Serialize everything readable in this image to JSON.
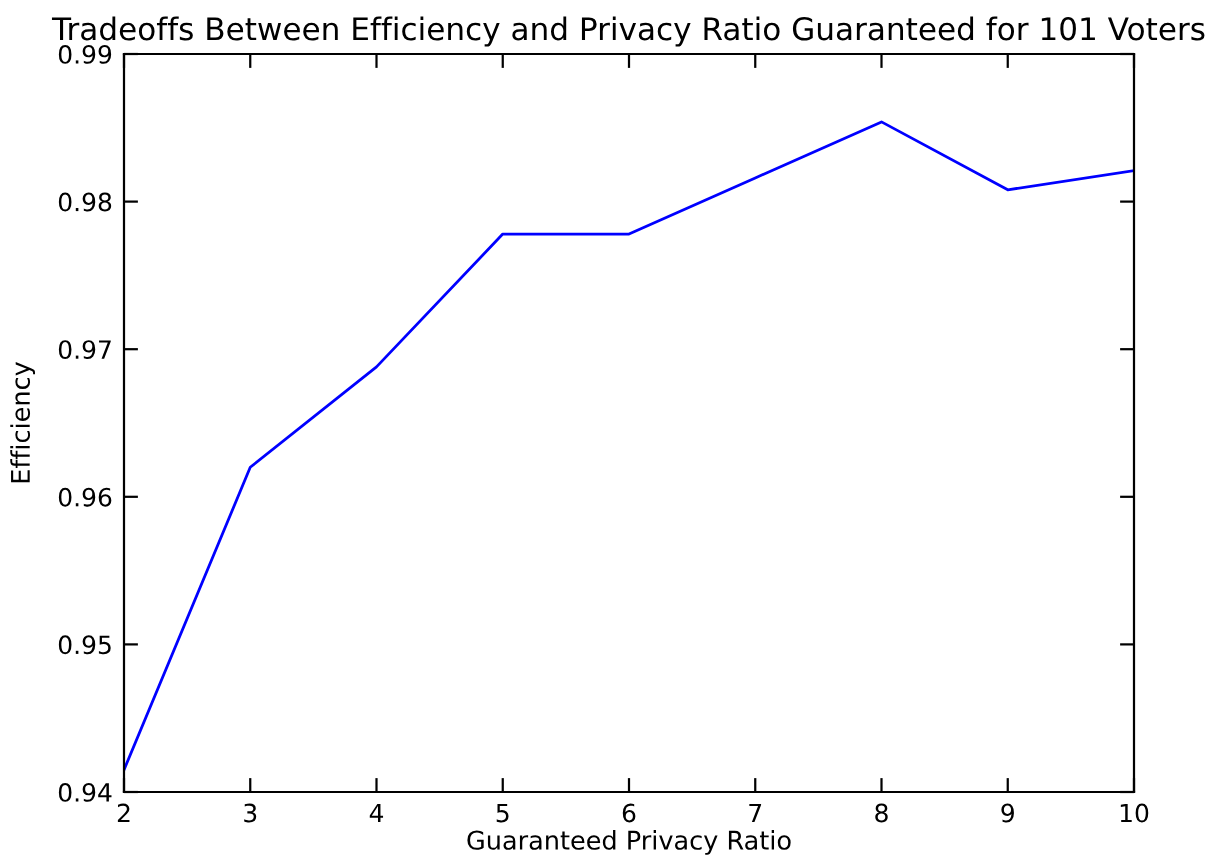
{
  "chart_data": {
    "type": "line",
    "title": "Tradeoffs Between Efficiency and Privacy Ratio Guaranteed for 101 Voters",
    "xlabel": "Guaranteed Privacy Ratio",
    "ylabel": "Efficiency",
    "x": [
      2,
      3,
      4,
      5,
      6,
      7,
      8,
      9,
      10
    ],
    "series": [
      {
        "color": "#0000ff",
        "values": [
          0.9415,
          0.962,
          0.9688,
          0.9778,
          0.9778,
          0.9816,
          0.9854,
          0.9808,
          0.9821
        ]
      }
    ],
    "xlim": [
      2,
      10
    ],
    "xticks": [
      2,
      3,
      4,
      5,
      6,
      7,
      8,
      9,
      10
    ],
    "ylim": [
      0.94,
      0.99
    ],
    "yticks": [
      0.94,
      0.95,
      0.96,
      0.97,
      0.98,
      0.99
    ],
    "grid": false,
    "marker": "none",
    "line_style": "solid"
  }
}
